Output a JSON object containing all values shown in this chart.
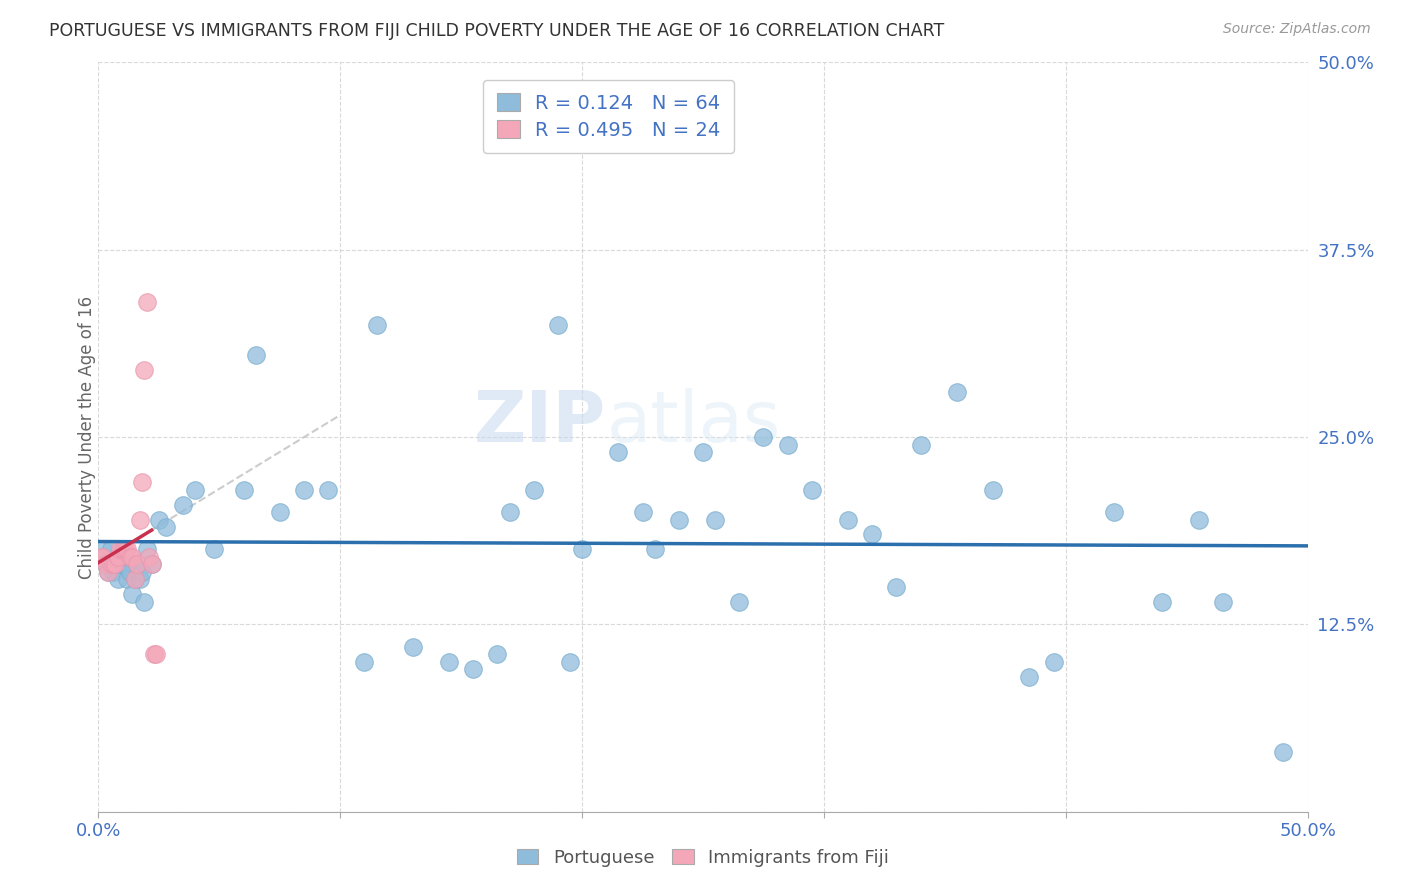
{
  "title": "PORTUGUESE VS IMMIGRANTS FROM FIJI CHILD POVERTY UNDER THE AGE OF 16 CORRELATION CHART",
  "source": "Source: ZipAtlas.com",
  "ylabel": "Child Poverty Under the Age of 16",
  "xlim": [
    0.0,
    0.5
  ],
  "ylim": [
    0.0,
    0.5
  ],
  "blue_color": "#8fbcdb",
  "blue_edge_color": "#7aaece",
  "pink_color": "#f4a7b9",
  "pink_edge_color": "#e898ae",
  "blue_line_color": "#2c6fad",
  "pink_line_color": "#c9304e",
  "r_blue": 0.124,
  "n_blue": 64,
  "r_pink": 0.495,
  "n_pink": 24,
  "watermark_zip": "ZIP",
  "watermark_atlas": "atlas",
  "figsize": [
    14.06,
    8.92
  ],
  "dpi": 100,
  "blue_x": [
    0.002,
    0.003,
    0.004,
    0.005,
    0.006,
    0.007,
    0.008,
    0.009,
    0.01,
    0.011,
    0.012,
    0.013,
    0.014,
    0.015,
    0.016,
    0.017,
    0.018,
    0.019,
    0.02,
    0.022,
    0.025,
    0.028,
    0.035,
    0.04,
    0.048,
    0.06,
    0.065,
    0.075,
    0.085,
    0.095,
    0.11,
    0.115,
    0.13,
    0.145,
    0.155,
    0.165,
    0.17,
    0.18,
    0.19,
    0.195,
    0.2,
    0.215,
    0.225,
    0.23,
    0.24,
    0.25,
    0.255,
    0.265,
    0.275,
    0.285,
    0.295,
    0.31,
    0.32,
    0.33,
    0.34,
    0.355,
    0.37,
    0.385,
    0.395,
    0.42,
    0.44,
    0.455,
    0.465,
    0.49
  ],
  "blue_y": [
    0.175,
    0.165,
    0.16,
    0.175,
    0.16,
    0.165,
    0.155,
    0.165,
    0.165,
    0.17,
    0.155,
    0.16,
    0.145,
    0.155,
    0.165,
    0.155,
    0.16,
    0.14,
    0.175,
    0.165,
    0.195,
    0.19,
    0.205,
    0.215,
    0.175,
    0.215,
    0.305,
    0.2,
    0.215,
    0.215,
    0.1,
    0.325,
    0.11,
    0.1,
    0.095,
    0.105,
    0.2,
    0.215,
    0.325,
    0.1,
    0.175,
    0.24,
    0.2,
    0.175,
    0.195,
    0.24,
    0.195,
    0.14,
    0.25,
    0.245,
    0.215,
    0.195,
    0.185,
    0.15,
    0.245,
    0.28,
    0.215,
    0.09,
    0.1,
    0.2,
    0.14,
    0.195,
    0.14,
    0.04
  ],
  "pink_x": [
    0.001,
    0.002,
    0.003,
    0.004,
    0.005,
    0.006,
    0.007,
    0.008,
    0.009,
    0.01,
    0.011,
    0.012,
    0.013,
    0.014,
    0.015,
    0.016,
    0.017,
    0.018,
    0.019,
    0.02,
    0.021,
    0.022,
    0.023,
    0.024
  ],
  "pink_y": [
    0.17,
    0.17,
    0.165,
    0.16,
    0.165,
    0.165,
    0.165,
    0.17,
    0.175,
    0.175,
    0.175,
    0.175,
    0.17,
    0.17,
    0.155,
    0.165,
    0.195,
    0.22,
    0.295,
    0.34,
    0.17,
    0.165,
    0.105,
    0.105
  ]
}
